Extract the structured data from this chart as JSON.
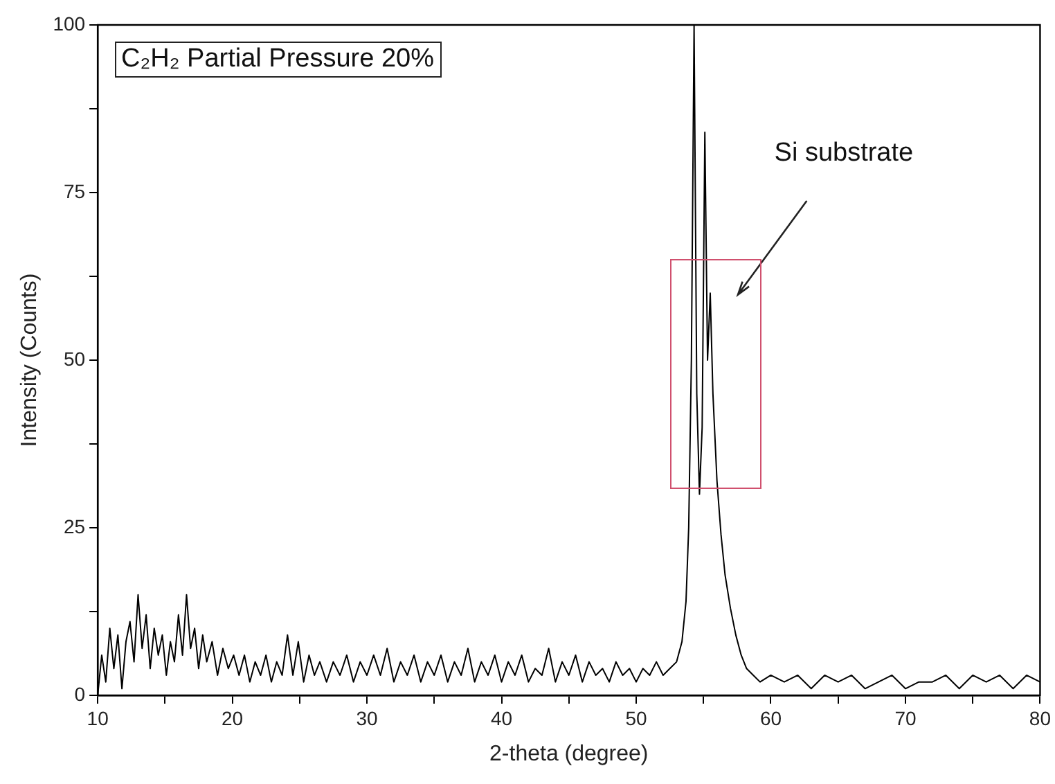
{
  "chart_data": {
    "type": "line",
    "xlabel": "2-theta (degree)",
    "ylabel": "Intensity (Counts)",
    "annotations": [
      "C₂H₂ Partial Pressure 20%",
      "Si substrate"
    ],
    "x": [
      10.0,
      10.3,
      10.6,
      10.9,
      11.2,
      11.5,
      11.8,
      12.1,
      12.4,
      12.7,
      13.0,
      13.3,
      13.6,
      13.9,
      14.2,
      14.5,
      14.8,
      15.1,
      15.4,
      15.7,
      16.0,
      16.3,
      16.6,
      16.9,
      17.2,
      17.5,
      17.8,
      18.1,
      18.5,
      18.9,
      19.3,
      19.7,
      20.1,
      20.5,
      20.9,
      21.3,
      21.7,
      22.1,
      22.5,
      22.9,
      23.3,
      23.7,
      24.1,
      24.5,
      24.9,
      25.3,
      25.7,
      26.1,
      26.5,
      27.0,
      27.5,
      28.0,
      28.5,
      29.0,
      29.5,
      30.0,
      30.5,
      31.0,
      31.5,
      32.0,
      32.5,
      33.0,
      33.5,
      34.0,
      34.5,
      35.0,
      35.5,
      36.0,
      36.5,
      37.0,
      37.5,
      38.0,
      38.5,
      39.0,
      39.5,
      40.0,
      40.5,
      41.0,
      41.5,
      42.0,
      42.5,
      43.0,
      43.5,
      44.0,
      44.5,
      45.0,
      45.5,
      46.0,
      46.5,
      47.0,
      47.5,
      48.0,
      48.5,
      49.0,
      49.5,
      50.0,
      50.5,
      51.0,
      51.5,
      52.0,
      52.5,
      53.0,
      53.4,
      53.7,
      53.9,
      54.1,
      54.3,
      54.5,
      54.7,
      54.9,
      55.1,
      55.3,
      55.5,
      55.7,
      56.0,
      56.3,
      56.6,
      57.0,
      57.4,
      57.8,
      58.2,
      58.7,
      59.2,
      60,
      61,
      62,
      63,
      64,
      65,
      66,
      67,
      68,
      69,
      70,
      71,
      72,
      73,
      74,
      75,
      76,
      77,
      78,
      79,
      80
    ],
    "series": [
      {
        "color": "#000000",
        "values": [
          0,
          6,
          2,
          10,
          4,
          9,
          1,
          8,
          11,
          5,
          15,
          7,
          12,
          4,
          10,
          6,
          9,
          3,
          8,
          5,
          12,
          6,
          15,
          7,
          10,
          4,
          9,
          5,
          8,
          3,
          7,
          4,
          6,
          3,
          6,
          2,
          5,
          3,
          6,
          2,
          5,
          3,
          9,
          3,
          8,
          2,
          6,
          3,
          5,
          2,
          5,
          3,
          6,
          2,
          5,
          3,
          6,
          3,
          7,
          2,
          5,
          3,
          6,
          2,
          5,
          3,
          6,
          2,
          5,
          3,
          7,
          2,
          5,
          3,
          6,
          2,
          5,
          3,
          6,
          2,
          4,
          3,
          7,
          2,
          5,
          3,
          6,
          2,
          5,
          3,
          4,
          2,
          5,
          3,
          4,
          2,
          4,
          3,
          5,
          3,
          4,
          5,
          8,
          14,
          25,
          50,
          100,
          45,
          30,
          40,
          84,
          50,
          60,
          45,
          32,
          24,
          18,
          13,
          9,
          6,
          4,
          3,
          2,
          3,
          2,
          3,
          1,
          3,
          2,
          3,
          1,
          2,
          3,
          1,
          2,
          2,
          3,
          1,
          3,
          2,
          3,
          1,
          3,
          2
        ]
      }
    ],
    "xlim": [
      10,
      80
    ],
    "xticks": [
      10,
      {
        "value": 15,
        "label": null
      },
      20,
      {
        "value": 25,
        "label": null
      },
      30,
      {
        "value": 35,
        "label": null
      },
      40,
      {
        "value": 45,
        "label": null
      },
      50,
      {
        "value": 55,
        "label": null
      },
      60,
      {
        "value": 65,
        "label": null
      },
      70,
      {
        "value": 75,
        "label": null
      },
      80
    ],
    "ylim": [
      0,
      100
    ],
    "yticks": [
      0,
      {
        "value": 12.5,
        "label": null
      },
      25,
      {
        "value": 37.5,
        "label": null
      },
      50,
      {
        "value": 62.5,
        "label": null
      },
      75,
      {
        "value": 87.5,
        "label": null
      },
      100
    ],
    "grid": false,
    "legend": false,
    "marker": "none",
    "line_style": "solid"
  }
}
